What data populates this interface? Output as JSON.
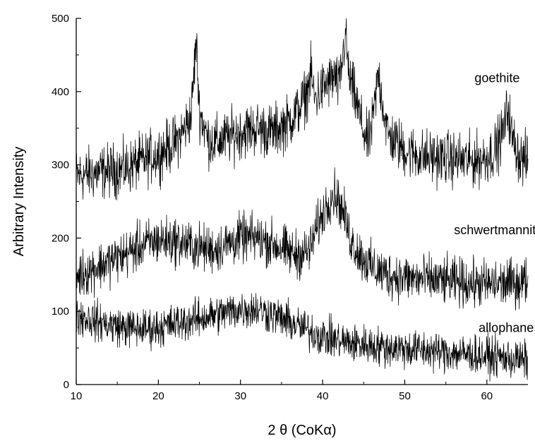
{
  "chart_data": {
    "type": "line",
    "title": "",
    "xlabel": "2 θ (CoKα)",
    "ylabel": "Arbitrary Intensity",
    "xlim": [
      10,
      65
    ],
    "ylim": [
      0,
      500
    ],
    "x_ticks": [
      10,
      20,
      30,
      40,
      50,
      60
    ],
    "y_ticks": [
      0,
      100,
      200,
      300,
      400,
      500
    ],
    "x_tick_labels": [
      "10",
      "20",
      "30",
      "40",
      "50",
      "60"
    ],
    "y_tick_labels": [
      "0",
      "100",
      "200",
      "300",
      "400",
      "500"
    ],
    "grid": false,
    "legend": "none",
    "line_color": "#000000",
    "x": [
      10,
      12,
      14,
      16,
      18,
      20,
      22,
      23,
      24,
      24.6,
      25,
      26,
      27,
      28,
      30,
      32,
      34,
      36,
      37,
      38,
      38.6,
      39,
      40,
      41,
      41.5,
      42,
      42.8,
      43.2,
      44,
      45,
      45.5,
      46,
      46.8,
      47.5,
      48,
      50,
      52,
      54,
      56,
      58,
      60,
      61,
      62,
      62.6,
      63,
      64,
      65
    ],
    "series": [
      {
        "name": "goethite",
        "label_at": [
          58.5,
          413
        ],
        "noise": 18,
        "values": [
          285,
          288,
          292,
          295,
          305,
          315,
          330,
          345,
          368,
          470,
          375,
          335,
          330,
          335,
          345,
          350,
          345,
          360,
          375,
          395,
          425,
          390,
          405,
          415,
          420,
          405,
          480,
          420,
          390,
          345,
          330,
          350,
          425,
          370,
          340,
          320,
          312,
          310,
          308,
          305,
          310,
          320,
          345,
          380,
          340,
          310,
          305
        ]
      },
      {
        "name": "schwertmannite",
        "label_at": [
          56,
          205
        ],
        "noise": 16,
        "values": [
          148,
          158,
          168,
          178,
          190,
          197,
          196,
          193,
          190,
          188,
          187,
          185,
          185,
          190,
          200,
          200,
          192,
          180,
          178,
          180,
          188,
          205,
          232,
          258,
          260,
          250,
          225,
          205,
          186,
          172,
          165,
          160,
          155,
          152,
          150,
          146,
          144,
          142,
          140,
          138,
          137,
          137,
          138,
          138,
          139,
          140,
          142
        ]
      },
      {
        "name": "allophane",
        "label_at": [
          59,
          72
        ],
        "noise": 13,
        "values": [
          95,
          88,
          82,
          78,
          76,
          78,
          83,
          86,
          88,
          89,
          90,
          93,
          95,
          98,
          103,
          103,
          95,
          85,
          80,
          75,
          72,
          70,
          66,
          63,
          61,
          60,
          58,
          57,
          56,
          55,
          54,
          53,
          52,
          51,
          51,
          49,
          47,
          45,
          43,
          41,
          39,
          38,
          37,
          36,
          35,
          34,
          33
        ]
      }
    ]
  }
}
